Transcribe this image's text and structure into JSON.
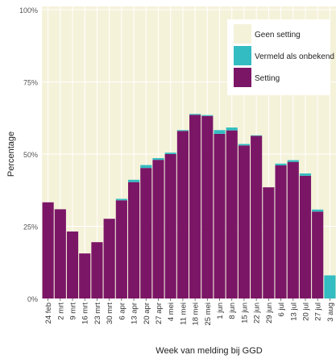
{
  "chart_data": {
    "type": "bar",
    "stacked": true,
    "title": "",
    "xlabel": "Week van melding bij GGD",
    "ylabel": "Percentage",
    "ylim": [
      0,
      100
    ],
    "y_tick_values": [
      0,
      25,
      50,
      75,
      100
    ],
    "y_tick_labels": [
      "0%",
      "25%",
      "50%",
      "75%",
      "100%"
    ],
    "categories": [
      "24 feb",
      "2 mrt",
      "9 mrt",
      "16 mrt",
      "23 mrt",
      "30 mrt",
      "6 apr",
      "13 apr",
      "20 apr",
      "27 apr",
      "4 mei",
      "11 mei",
      "18 mei",
      "25 mei",
      "1 jun",
      "8 jun",
      "15 jun",
      "22 jun",
      "29 jun",
      "6 jul",
      "13 jul",
      "20 jul",
      "27 jul",
      "3 aug"
    ],
    "series": [
      {
        "name": "Setting",
        "color": "#7b1667",
        "values": [
          33.3,
          30.9,
          23.2,
          15.6,
          19.5,
          27.6,
          34.0,
          40.3,
          45.2,
          48.0,
          50.0,
          58.0,
          63.6,
          63.2,
          57.0,
          58.2,
          53.0,
          56.3,
          38.5,
          46.1,
          47.3,
          42.5,
          30.1,
          0.0
        ]
      },
      {
        "name": "Vermeld als onbekend",
        "color": "#33bcc1",
        "values": [
          0.0,
          0.0,
          0.0,
          0.0,
          0.0,
          0.0,
          0.5,
          0.8,
          1.0,
          0.6,
          0.5,
          0.3,
          0.3,
          0.3,
          1.3,
          1.0,
          0.5,
          0.2,
          0.0,
          0.6,
          0.6,
          0.8,
          0.7,
          8.0
        ]
      },
      {
        "name": "Geen setting",
        "color": "#f5f2da",
        "values": [
          66.7,
          69.1,
          76.8,
          84.4,
          80.5,
          72.4,
          65.5,
          58.9,
          53.8,
          51.4,
          49.5,
          41.7,
          36.1,
          36.5,
          41.7,
          40.8,
          46.5,
          43.5,
          61.5,
          53.3,
          52.1,
          56.7,
          69.2,
          92.0
        ]
      }
    ],
    "legend": {
      "position": "top-right",
      "items": [
        {
          "label": "Geen setting",
          "color": "#f5f2da"
        },
        {
          "label": "Vermeld als onbekend",
          "color": "#33bcc1"
        },
        {
          "label": "Setting",
          "color": "#7b1667"
        }
      ]
    },
    "grid": true,
    "panel_background": "#f5f2da"
  }
}
